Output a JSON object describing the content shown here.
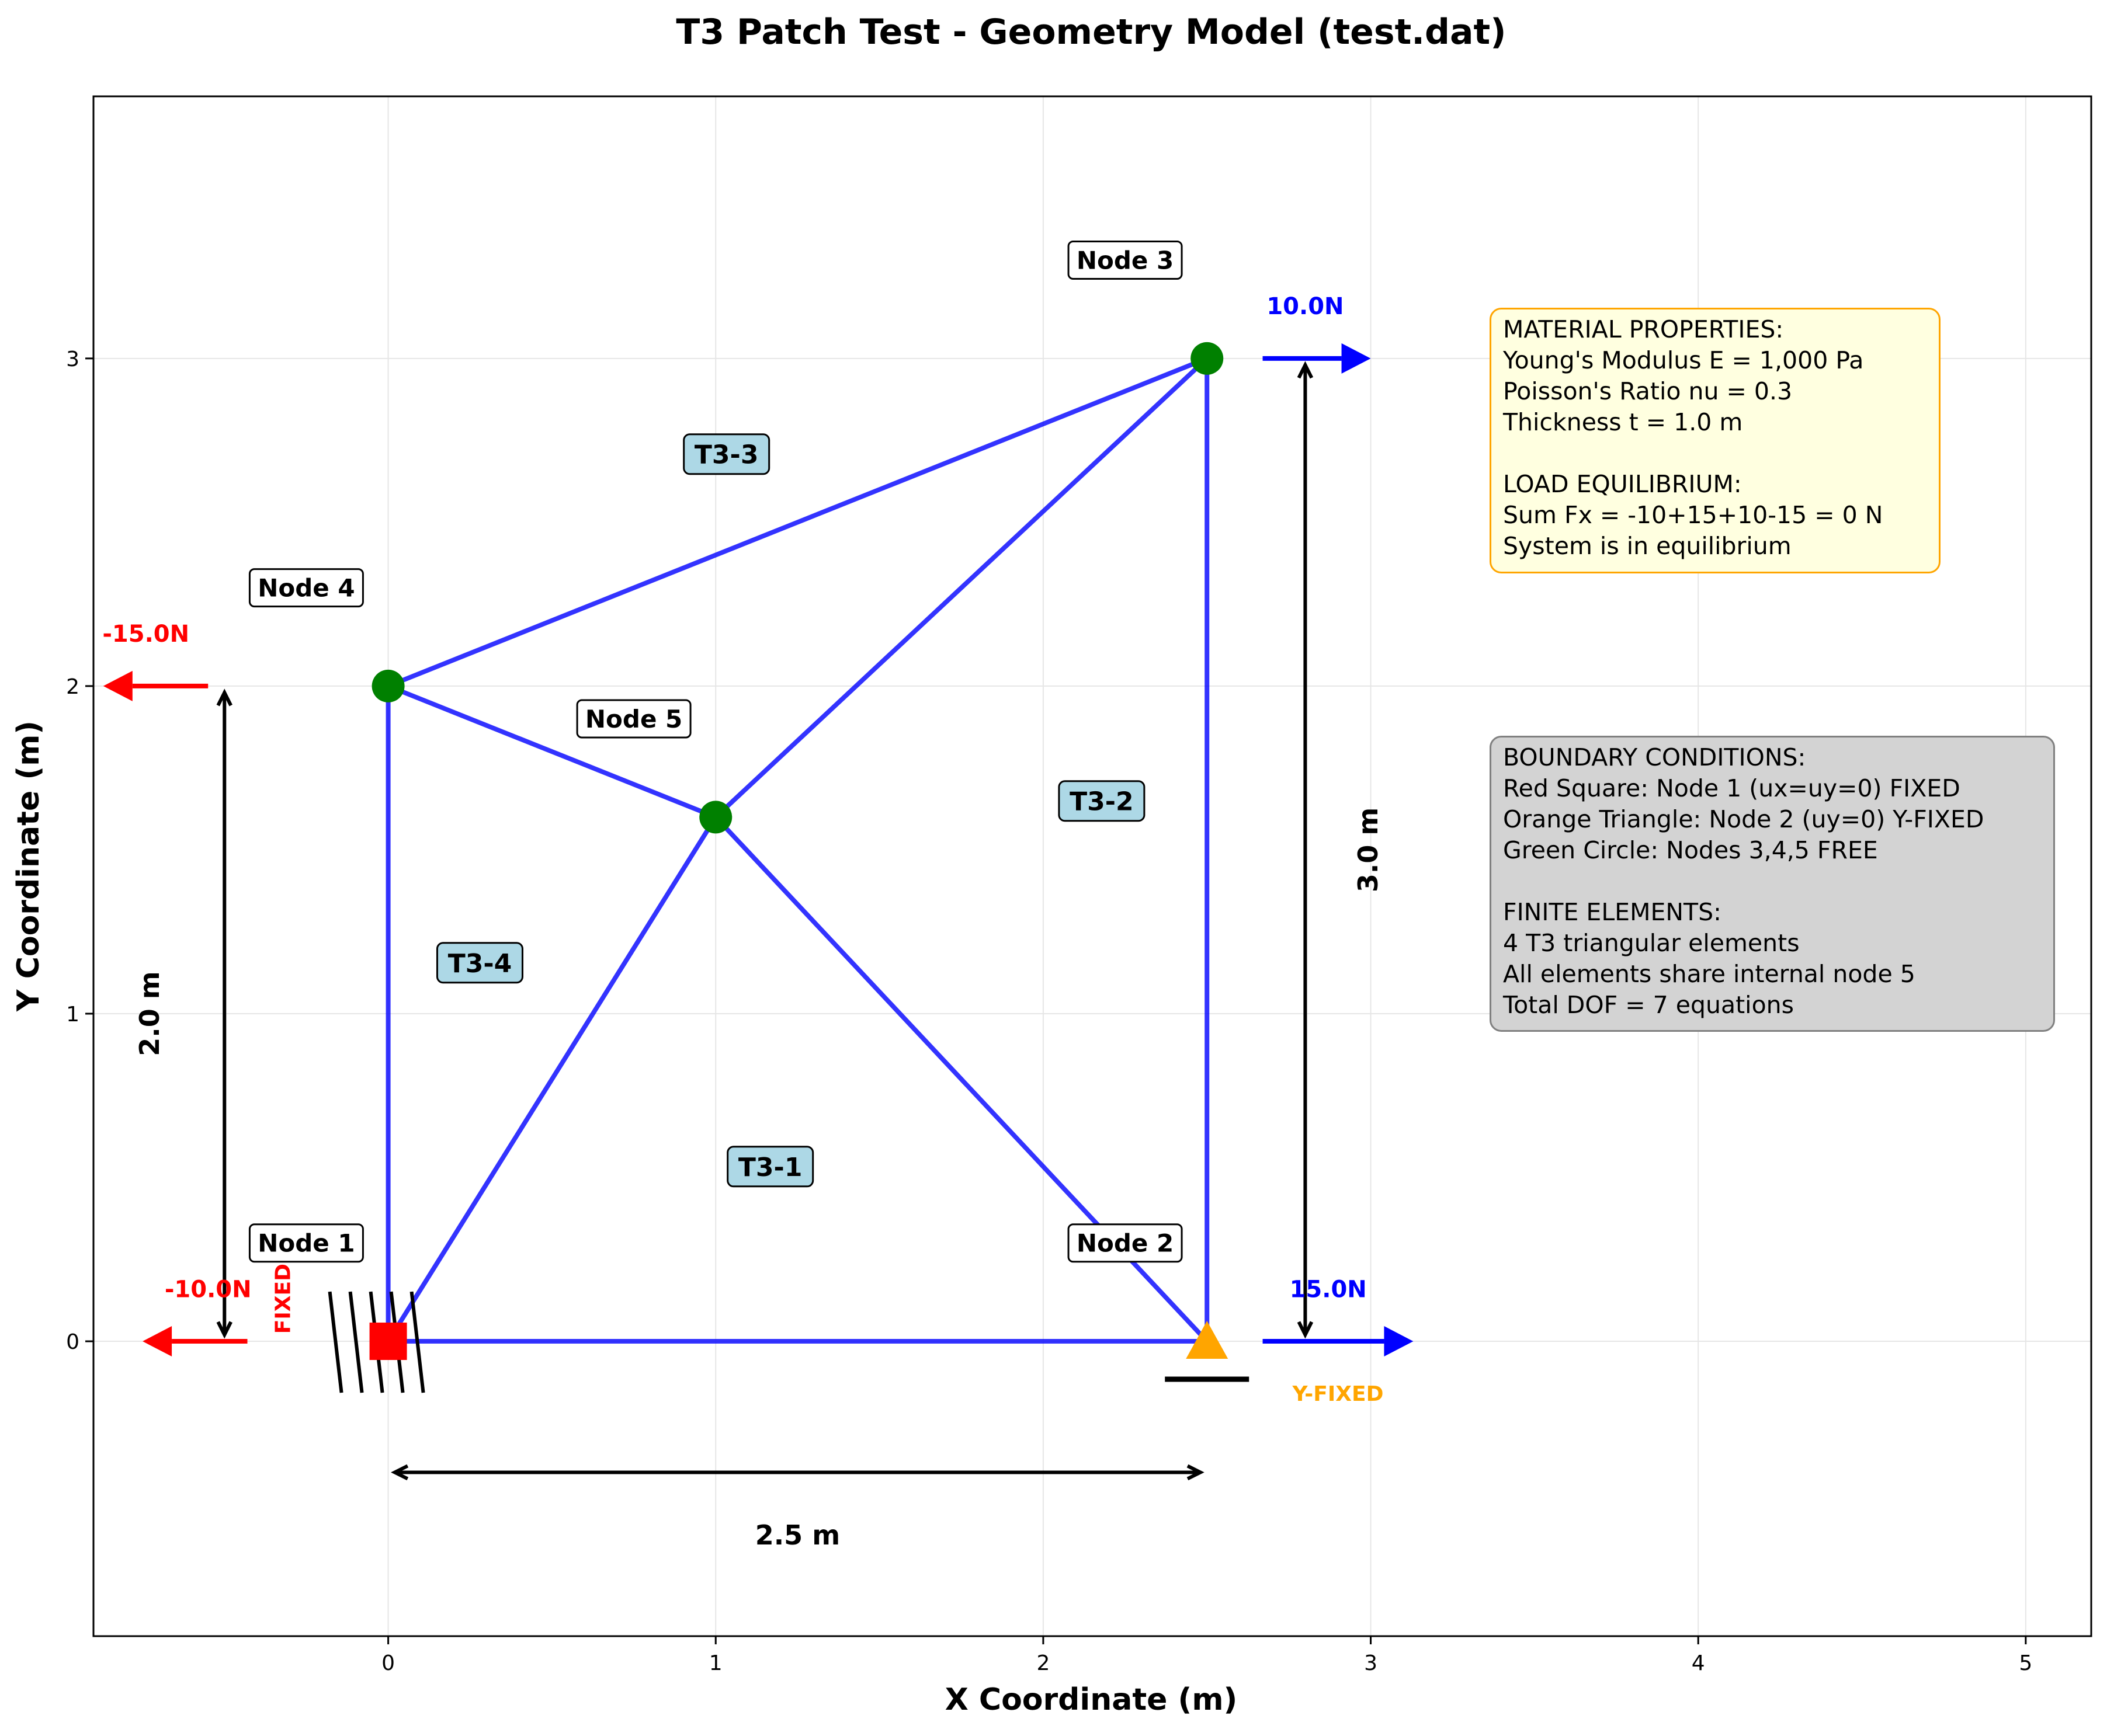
{
  "title": "T3 Patch Test - Geometry Model (test.dat)",
  "xlabel": "X Coordinate (m)",
  "ylabel": "Y Coordinate (m)",
  "axes": {
    "xlim": [
      -0.9,
      5.2
    ],
    "ylim": [
      -0.9,
      3.8
    ],
    "x_ticks": [
      "0",
      "1",
      "2",
      "3",
      "4",
      "5"
    ],
    "y_ticks": [
      "0",
      "1",
      "2",
      "3"
    ],
    "grid": true
  },
  "nodes": [
    {
      "label": "Node 1",
      "x": 0,
      "y": 0,
      "support": "fixed"
    },
    {
      "label": "Node 2",
      "x": 2.5,
      "y": 0,
      "support": "y-fixed"
    },
    {
      "label": "Node 3",
      "x": 2.5,
      "y": 3,
      "support": "free"
    },
    {
      "label": "Node 4",
      "x": 0,
      "y": 2,
      "support": "free"
    },
    {
      "label": "Node 5",
      "x": 1,
      "y": 1.6,
      "support": "free"
    }
  ],
  "elements": [
    {
      "label": "T3-1",
      "nodes": [
        1,
        2,
        5
      ]
    },
    {
      "label": "T3-2",
      "nodes": [
        2,
        3,
        5
      ]
    },
    {
      "label": "T3-3",
      "nodes": [
        3,
        4,
        5
      ]
    },
    {
      "label": "T3-4",
      "nodes": [
        4,
        1,
        5
      ]
    }
  ],
  "loads": [
    {
      "label": "-10.0N",
      "node": 1,
      "fx": -10,
      "color": "#ff0000"
    },
    {
      "label": "15.0N",
      "node": 2,
      "fx": 15,
      "color": "#0000ff"
    },
    {
      "label": "10.0N",
      "node": 3,
      "fx": 10,
      "color": "#0000ff"
    },
    {
      "label": "-15.0N",
      "node": 4,
      "fx": -15,
      "color": "#ff0000"
    }
  ],
  "support_labels": {
    "fixed": "FIXED",
    "y_fixed": "Y-FIXED"
  },
  "dimensions": {
    "width": "2.5 m",
    "height_left": "2.0 m",
    "height_right": "3.0 m"
  },
  "material_box": "MATERIAL PROPERTIES:\nYoung's Modulus E = 1,000 Pa\nPoisson's Ratio nu = 0.3\nThickness t = 1.0 m\n\nLOAD EQUILIBRIUM:\nSum Fx = -10+15+10-15 = 0 N\nSystem is in equilibrium",
  "bc_box": "BOUNDARY CONDITIONS:\nRed Square: Node 1 (ux=uy=0) FIXED\nOrange Triangle: Node 2 (uy=0) Y-FIXED\nGreen Circle: Nodes 3,4,5 FREE\n\nFINITE ELEMENTS:\n4 T3 triangular elements\nAll elements share internal node 5\nTotal DOF = 7 equations",
  "colors": {
    "mesh": "#0000ff",
    "free_node": "#008000",
    "fixed_support": "#ff0000",
    "roller_support": "#ffa500",
    "element_label_bg": "#add8e6",
    "grid": "#e6e6e6"
  }
}
